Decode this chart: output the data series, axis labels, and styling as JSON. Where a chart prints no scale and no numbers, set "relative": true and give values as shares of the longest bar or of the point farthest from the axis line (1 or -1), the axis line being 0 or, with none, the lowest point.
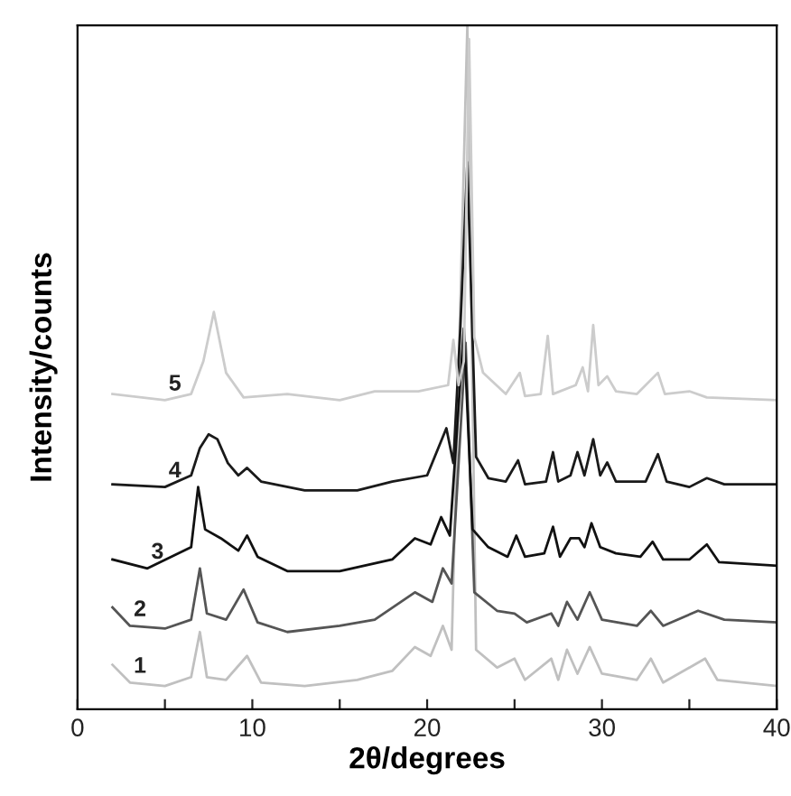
{
  "chart_data": {
    "type": "line",
    "relative": true,
    "xlabel": "2θ/degrees",
    "ylabel": "Intensity/counts",
    "xlim": [
      0,
      40
    ],
    "xticks": [
      0,
      {
        "value": 5,
        "label": null
      },
      10,
      {
        "value": 15,
        "label": null
      },
      20,
      {
        "value": 25,
        "label": null
      },
      30,
      {
        "value": 35,
        "label": null
      },
      40
    ],
    "tick_labels": "x",
    "grid": false,
    "legend": false,
    "series": [
      {
        "name": "1",
        "color": "#c0c0c0",
        "x": [
          2,
          3,
          5,
          6.5,
          7.0,
          7.4,
          8.5,
          9.7,
          10.5,
          13,
          16,
          18,
          19.3,
          20.2,
          20.9,
          21.4,
          22.3,
          22.8,
          24,
          25,
          25.6,
          27.1,
          27.5,
          28.0,
          28.6,
          29.3,
          30,
          32,
          32.8,
          33.5,
          35.9,
          36.6,
          40
        ],
        "values": [
          0.065,
          0.039,
          0.034,
          0.047,
          0.113,
          0.047,
          0.043,
          0.078,
          0.039,
          0.034,
          0.043,
          0.056,
          0.091,
          0.078,
          0.122,
          0.087,
          1.0,
          0.087,
          0.061,
          0.074,
          0.043,
          0.074,
          0.043,
          0.087,
          0.052,
          0.091,
          0.052,
          0.043,
          0.074,
          0.039,
          0.074,
          0.043,
          0.034
        ]
      },
      {
        "name": "2",
        "color": "#555555",
        "x": [
          2,
          3,
          5,
          6.5,
          7.0,
          7.4,
          8.5,
          9.5,
          10.3,
          12,
          15,
          17,
          19.3,
          20.3,
          20.9,
          21.4,
          22.2,
          22.7,
          24,
          25,
          25.7,
          27.1,
          27.5,
          28.0,
          28.6,
          29.3,
          30,
          32,
          32.8,
          33.5,
          35.5,
          37,
          40
        ],
        "values": [
          0.149,
          0.122,
          0.118,
          0.131,
          0.206,
          0.14,
          0.131,
          0.175,
          0.127,
          0.113,
          0.122,
          0.131,
          0.171,
          0.157,
          0.206,
          0.184,
          0.536,
          0.171,
          0.144,
          0.14,
          0.127,
          0.14,
          0.122,
          0.157,
          0.131,
          0.171,
          0.131,
          0.122,
          0.144,
          0.122,
          0.144,
          0.131,
          0.127
        ]
      },
      {
        "name": "3",
        "color": "#111111",
        "x": [
          2,
          4,
          6.5,
          6.9,
          7.3,
          8.2,
          9.2,
          9.7,
          10.3,
          12,
          15,
          18,
          19.3,
          20.2,
          20.8,
          21.3,
          22.1,
          22.6,
          23.5,
          24.6,
          25.1,
          25.6,
          26.7,
          27.2,
          27.6,
          28.2,
          28.7,
          29.0,
          29.4,
          29.9,
          30.8,
          32.2,
          32.9,
          33.5,
          35,
          36,
          36.7,
          40
        ],
        "values": [
          0.219,
          0.206,
          0.237,
          0.325,
          0.263,
          0.25,
          0.232,
          0.254,
          0.223,
          0.202,
          0.202,
          0.219,
          0.25,
          0.241,
          0.281,
          0.254,
          0.557,
          0.263,
          0.237,
          0.223,
          0.254,
          0.223,
          0.228,
          0.267,
          0.223,
          0.25,
          0.25,
          0.237,
          0.272,
          0.237,
          0.228,
          0.223,
          0.245,
          0.219,
          0.219,
          0.241,
          0.215,
          0.21
        ]
      },
      {
        "name": "4",
        "color": "#1a1a1a",
        "x": [
          2,
          5,
          6.5,
          7.0,
          7.5,
          8.0,
          8.6,
          9.2,
          9.7,
          10.5,
          13,
          16,
          18,
          20,
          21.1,
          21.5,
          21.9,
          22.3,
          22.8,
          23.5,
          24.5,
          25.2,
          25.6,
          26.8,
          27.2,
          27.5,
          28.2,
          28.6,
          29.0,
          29.5,
          29.9,
          30.3,
          30.8,
          32.5,
          33.2,
          33.7,
          35,
          36,
          37,
          40
        ],
        "values": [
          0.329,
          0.325,
          0.342,
          0.382,
          0.402,
          0.395,
          0.36,
          0.342,
          0.353,
          0.333,
          0.32,
          0.32,
          0.333,
          0.342,
          0.411,
          0.36,
          0.558,
          0.8,
          0.369,
          0.338,
          0.333,
          0.364,
          0.329,
          0.333,
          0.376,
          0.333,
          0.342,
          0.376,
          0.342,
          0.395,
          0.342,
          0.361,
          0.333,
          0.333,
          0.373,
          0.333,
          0.325,
          0.338,
          0.329,
          0.329
        ]
      },
      {
        "name": "5",
        "color": "#cccccc",
        "x": [
          2,
          5,
          6.5,
          7.2,
          7.8,
          8.5,
          9.5,
          12,
          15,
          17,
          19.5,
          21.2,
          21.5,
          21.8,
          22.1,
          22.4,
          22.7,
          23.2,
          24.5,
          25.3,
          25.6,
          26.5,
          26.9,
          27.2,
          28.5,
          28.9,
          29.2,
          29.5,
          29.8,
          30.3,
          30.8,
          32,
          33.2,
          33.6,
          35,
          36,
          40
        ],
        "values": [
          0.461,
          0.452,
          0.461,
          0.509,
          0.581,
          0.492,
          0.456,
          0.461,
          0.452,
          0.465,
          0.465,
          0.474,
          0.54,
          0.474,
          0.509,
          0.98,
          0.544,
          0.492,
          0.461,
          0.492,
          0.458,
          0.461,
          0.546,
          0.461,
          0.474,
          0.5,
          0.465,
          0.562,
          0.474,
          0.487,
          0.465,
          0.461,
          0.492,
          0.461,
          0.465,
          0.456,
          0.452
        ]
      }
    ]
  }
}
